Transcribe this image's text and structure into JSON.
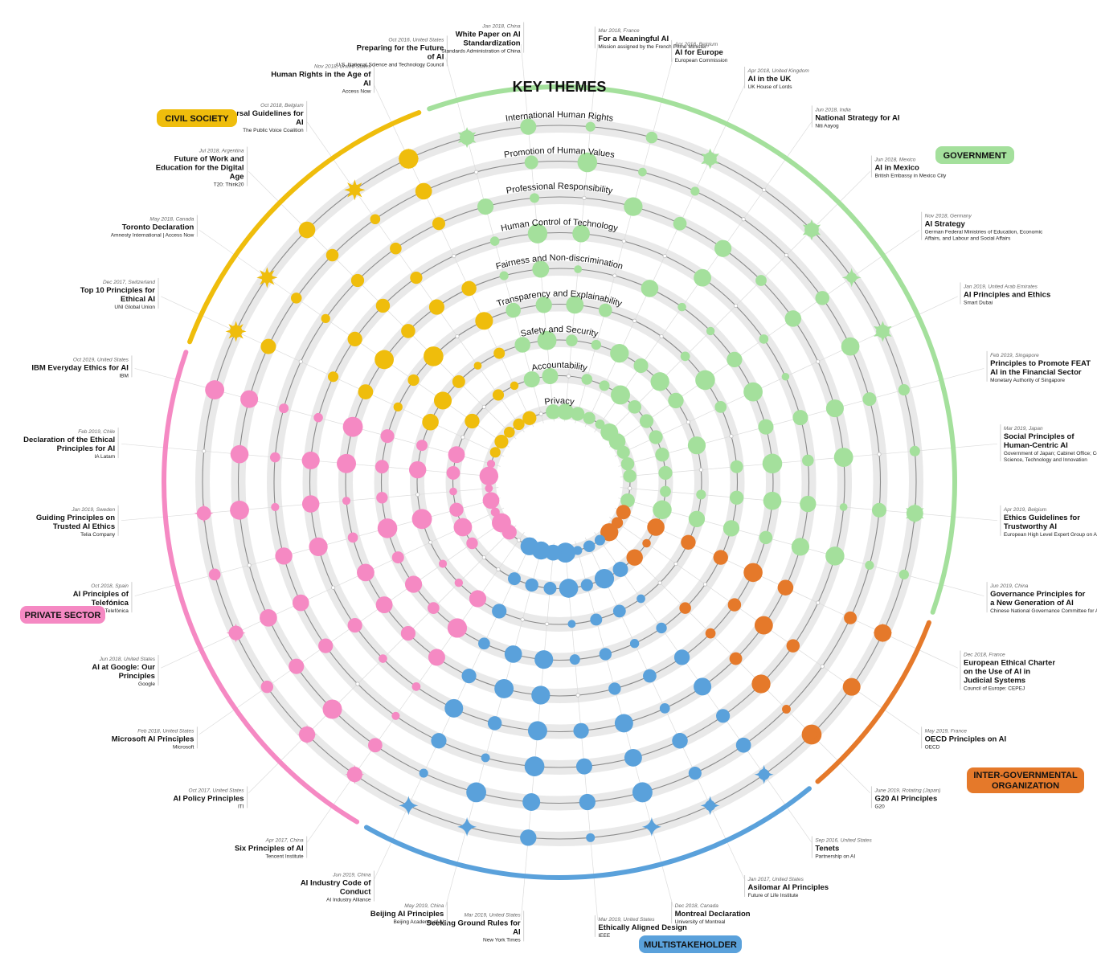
{
  "title": "KEY THEMES",
  "colors": {
    "civil_society": "#efbd0c",
    "government": "#a4e09c",
    "private_sector": "#f589c3",
    "multistakeholder": "#5aa1db",
    "intergovernmental": "#e5792a",
    "track": "#e9e9e9",
    "track_line": "#8a8a8a"
  },
  "themes": [
    "Privacy",
    "Accountability",
    "Safety and Security",
    "Transparency and Explainability",
    "Fairness and Non-discrimination",
    "Human Control of Technology",
    "Professional Responsibility",
    "Promotion of Human Values",
    "International Human Rights"
  ],
  "categories": [
    {
      "key": "civil_society",
      "label": "CIVIL SOCIETY"
    },
    {
      "key": "government",
      "label": "GOVERNMENT"
    },
    {
      "key": "intergovernmental",
      "label": "INTER-GOVERNMENTAL ORGANIZATION"
    },
    {
      "key": "multistakeholder",
      "label": "MULTISTAKEHOLDER"
    },
    {
      "key": "private_sector",
      "label": "PRIVATE SECTOR"
    }
  ],
  "documents": [
    {
      "meta": "Mar 2018, France",
      "title": "For a Meaningful AI",
      "author": "Mission assigned by the French Prime Minister",
      "category": "government"
    },
    {
      "meta": "Apr 2018, Belgium",
      "title": "AI for Europe",
      "author": "European Commission",
      "category": "government"
    },
    {
      "meta": "Apr 2018, United Kingdom",
      "title": "AI in the UK",
      "author": "UK House of Lords",
      "category": "government"
    },
    {
      "meta": "Jun 2018, India",
      "title": "National Strategy for AI",
      "author": "Niti Aayog",
      "category": "government"
    },
    {
      "meta": "Jun 2018, Mexico",
      "title": "AI in Mexico",
      "author": "British Embassy in Mexico City",
      "category": "government"
    },
    {
      "meta": "Nov 2018, Germany",
      "title": "AI Strategy",
      "author": "German Federal Ministries of Education, Economic Affairs, and Labour and Social Affairs",
      "category": "government"
    },
    {
      "meta": "Jan 2019, United Arab Emirates",
      "title": "AI Principles and Ethics",
      "author": "Smart Dubai",
      "category": "government"
    },
    {
      "meta": "Feb 2019, Singapore",
      "title": "Principles to Promote FEAT AI in the Financial Sector",
      "author": "Monetary Authority of Singapore",
      "category": "government"
    },
    {
      "meta": "Mar 2019, Japan",
      "title": "Social Principles of Human-Centric AI",
      "author": "Government of Japan; Cabinet Office; Council for Science, Technology and Innovation",
      "category": "government"
    },
    {
      "meta": "Apr 2019, Belgium",
      "title": "Ethics Guidelines for Trustworthy AI",
      "author": "European High Level Expert Group on AI",
      "category": "government"
    },
    {
      "meta": "Jun 2019, China",
      "title": "Governance Principles for a New Generation of AI",
      "author": "Chinese National Governance Committee for AI",
      "category": "government"
    },
    {
      "meta": "Dec 2018, France",
      "title": "European Ethical Charter on the Use of AI in Judicial Systems",
      "author": "Council of Europe: CEPEJ",
      "category": "intergovernmental"
    },
    {
      "meta": "May 2019, France",
      "title": "OECD Principles on AI",
      "author": "OECD",
      "category": "intergovernmental"
    },
    {
      "meta": "June 2019, Rotating (Japan)",
      "title": "G20 AI Principles",
      "author": "G20",
      "category": "intergovernmental"
    },
    {
      "meta": "Sep 2016, United States",
      "title": "Tenets",
      "author": "Partnership on AI",
      "category": "multistakeholder"
    },
    {
      "meta": "Jan 2017, United States",
      "title": "Asilomar AI Principles",
      "author": "Future of Life Institute",
      "category": "multistakeholder"
    },
    {
      "meta": "Dec 2018, Canada",
      "title": "Montreal Declaration",
      "author": "University of Montreal",
      "category": "multistakeholder"
    },
    {
      "meta": "Mar 2019, United States",
      "title": "Ethically Aligned Design",
      "author": "IEEE",
      "category": "multistakeholder"
    },
    {
      "meta": "Mar 2019, United States",
      "title": "Seeking Ground Rules for AI",
      "author": "New York Times",
      "category": "multistakeholder"
    },
    {
      "meta": "May 2019, China",
      "title": "Beijing AI Principles",
      "author": "Beijing Academy of AI",
      "category": "multistakeholder"
    },
    {
      "meta": "Jun 2019, China",
      "title": "AI Industry Code of Conduct",
      "author": "AI Industry Alliance",
      "category": "multistakeholder"
    },
    {
      "meta": "Apr 2017, China",
      "title": "Six Principles of AI",
      "author": "Tencent Institute",
      "category": "private_sector"
    },
    {
      "meta": "Oct 2017, United States",
      "title": "AI Policy Principles",
      "author": "ITI",
      "category": "private_sector"
    },
    {
      "meta": "Feb 2018, United States",
      "title": "Microsoft AI Principles",
      "author": "Microsoft",
      "category": "private_sector"
    },
    {
      "meta": "Jun 2018, United States",
      "title": "AI at Google: Our Principles",
      "author": "Google",
      "category": "private_sector"
    },
    {
      "meta": "Oct 2018, Spain",
      "title": "AI Principles of Telefónica",
      "author": "Telefónica",
      "category": "private_sector"
    },
    {
      "meta": "Jan 2019, Sweden",
      "title": "Guiding Principles on Trusted AI Ethics",
      "author": "Telia Company",
      "category": "private_sector"
    },
    {
      "meta": "Feb 2019, Chile",
      "title": "Declaration of the Ethical Principles for AI",
      "author": "IA Latam",
      "category": "private_sector"
    },
    {
      "meta": "Oct 2019, United States",
      "title": "IBM Everyday Ethics for AI",
      "author": "IBM",
      "category": "private_sector"
    },
    {
      "meta": "Dec 2017, Switzerland",
      "title": "Top 10 Principles for Ethical AI",
      "author": "UNI Global Union",
      "category": "civil_society"
    },
    {
      "meta": "May 2018, Canada",
      "title": "Toronto Declaration",
      "author": "Amnesty International | Access Now",
      "category": "civil_society"
    },
    {
      "meta": "Jul 2018, Argentina",
      "title": "Future of Work and Education for the Digital Age",
      "author": "T20: Think20",
      "category": "civil_society"
    },
    {
      "meta": "Oct 2018, Belgium",
      "title": "Universal Guidelines for AI",
      "author": "The Public Voice Coalition",
      "category": "civil_society"
    },
    {
      "meta": "Nov 2018, United States",
      "title": "Human Rights in the Age of AI",
      "author": "Access Now",
      "category": "civil_society"
    },
    {
      "meta": "Oct 2016, United States",
      "title": "Preparing for the Future of AI",
      "author": "U.S. National Science and Technology Council",
      "category": "government"
    },
    {
      "meta": "Jan 2018, China",
      "title": "White Paper on AI Standardization",
      "author": "Standards Administration of China",
      "category": "government"
    }
  ]
}
